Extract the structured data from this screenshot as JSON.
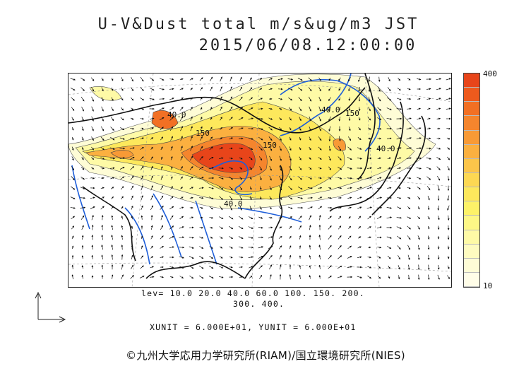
{
  "title": "U-V&Dust total m/s&ug/m3 JST",
  "datetime": "2015/06/08.12:00:00",
  "colorbar": {
    "max_label": "400",
    "min_label": "10",
    "colors": [
      "#e8451a",
      "#ee5a1d",
      "#f27024",
      "#f5852d",
      "#f89a36",
      "#fbb040",
      "#fcc54a",
      "#fdd853",
      "#fde85c",
      "#fdf268",
      "#fdf786",
      "#fefaa6",
      "#fefbc0",
      "#fefcd6",
      "#fffde8"
    ]
  },
  "levels_line1": "lev= 10.0 20.0 40.0 60.0 100. 150. 200.",
  "levels_line2": "300. 400.",
  "units": "XUNIT = 6.000E+01, YUNIT = 6.000E+01",
  "credit": "©九州大学応用力学研究所(RIAM)/国立環境研究所(NIES)",
  "contour_labels": [
    "40.0",
    "150",
    "40.0",
    "150",
    "40.0",
    "150",
    "40.0"
  ]
}
